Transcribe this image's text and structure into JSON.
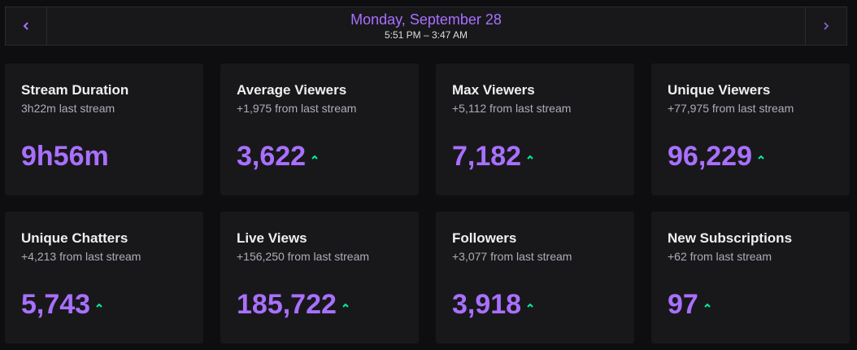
{
  "header": {
    "date": "Monday, September 28",
    "time_range": "5:51 PM – 3:47 AM",
    "prev_icon": "chevron-left-icon",
    "next_icon": "chevron-right-icon"
  },
  "colors": {
    "accent": "#a970ff",
    "trend_up": "#00f0a0",
    "card_bg": "#18181b",
    "page_bg": "#0e0e10"
  },
  "stats": [
    {
      "title": "Stream Duration",
      "subtitle": "3h22m last stream",
      "value": "9h56m",
      "trend": "none"
    },
    {
      "title": "Average Viewers",
      "subtitle": "+1,975 from last stream",
      "value": "3,622",
      "trend": "up"
    },
    {
      "title": "Max Viewers",
      "subtitle": "+5,112 from last stream",
      "value": "7,182",
      "trend": "up"
    },
    {
      "title": "Unique Viewers",
      "subtitle": "+77,975 from last stream",
      "value": "96,229",
      "trend": "up"
    },
    {
      "title": "Unique Chatters",
      "subtitle": "+4,213 from last stream",
      "value": "5,743",
      "trend": "up"
    },
    {
      "title": "Live Views",
      "subtitle": "+156,250 from last stream",
      "value": "185,722",
      "trend": "up"
    },
    {
      "title": "Followers",
      "subtitle": "+3,077 from last stream",
      "value": "3,918",
      "trend": "up"
    },
    {
      "title": "New Subscriptions",
      "subtitle": "+62 from last stream",
      "value": "97",
      "trend": "up"
    }
  ]
}
